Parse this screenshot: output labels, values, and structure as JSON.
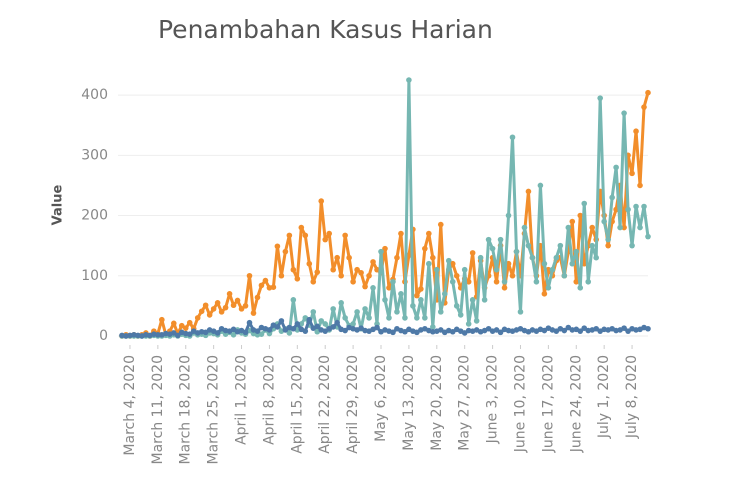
{
  "chart_data": {
    "type": "line",
    "title": "Penambahan Kasus Harian",
    "ylabel": "Value",
    "x": [
      "2020-03-02",
      "2020-03-03",
      "2020-03-04",
      "2020-03-05",
      "2020-03-06",
      "2020-03-07",
      "2020-03-08",
      "2020-03-09",
      "2020-03-10",
      "2020-03-11",
      "2020-03-12",
      "2020-03-13",
      "2020-03-14",
      "2020-03-15",
      "2020-03-16",
      "2020-03-17",
      "2020-03-18",
      "2020-03-19",
      "2020-03-20",
      "2020-03-21",
      "2020-03-22",
      "2020-03-23",
      "2020-03-24",
      "2020-03-25",
      "2020-03-26",
      "2020-03-27",
      "2020-03-28",
      "2020-03-29",
      "2020-03-30",
      "2020-03-31",
      "2020-04-01",
      "2020-04-02",
      "2020-04-03",
      "2020-04-04",
      "2020-04-05",
      "2020-04-06",
      "2020-04-07",
      "2020-04-08",
      "2020-04-09",
      "2020-04-10",
      "2020-04-11",
      "2020-04-12",
      "2020-04-13",
      "2020-04-14",
      "2020-04-15",
      "2020-04-16",
      "2020-04-17",
      "2020-04-18",
      "2020-04-19",
      "2020-04-20",
      "2020-04-21",
      "2020-04-22",
      "2020-04-23",
      "2020-04-24",
      "2020-04-25",
      "2020-04-26",
      "2020-04-27",
      "2020-04-28",
      "2020-04-29",
      "2020-04-30",
      "2020-05-01",
      "2020-05-02",
      "2020-05-03",
      "2020-05-04",
      "2020-05-05",
      "2020-05-06",
      "2020-05-07",
      "2020-05-08",
      "2020-05-09",
      "2020-05-10",
      "2020-05-11",
      "2020-05-12",
      "2020-05-13",
      "2020-05-14",
      "2020-05-15",
      "2020-05-16",
      "2020-05-17",
      "2020-05-18",
      "2020-05-19",
      "2020-05-20",
      "2020-05-21",
      "2020-05-22",
      "2020-05-23",
      "2020-05-24",
      "2020-05-25",
      "2020-05-26",
      "2020-05-27",
      "2020-05-28",
      "2020-05-29",
      "2020-05-30",
      "2020-05-31",
      "2020-06-01",
      "2020-06-02",
      "2020-06-03",
      "2020-06-04",
      "2020-06-05",
      "2020-06-06",
      "2020-06-07",
      "2020-06-08",
      "2020-06-09",
      "2020-06-10",
      "2020-06-11",
      "2020-06-12",
      "2020-06-13",
      "2020-06-14",
      "2020-06-15",
      "2020-06-16",
      "2020-06-17",
      "2020-06-18",
      "2020-06-19",
      "2020-06-20",
      "2020-06-21",
      "2020-06-22",
      "2020-06-23",
      "2020-06-24",
      "2020-06-25",
      "2020-06-26",
      "2020-06-27",
      "2020-06-28",
      "2020-06-29",
      "2020-06-30",
      "2020-07-01",
      "2020-07-02",
      "2020-07-03",
      "2020-07-04",
      "2020-07-05",
      "2020-07-06",
      "2020-07-07",
      "2020-07-08",
      "2020-07-09",
      "2020-07-10",
      "2020-07-11",
      "2020-07-12"
    ],
    "series": [
      {
        "color": "#f28e2b",
        "values": [
          0,
          2,
          0,
          2,
          0,
          2,
          5,
          0,
          8,
          4,
          27,
          2,
          8,
          21,
          4,
          17,
          13,
          22,
          12,
          30,
          41,
          51,
          35,
          45,
          55,
          40,
          47,
          70,
          51,
          59,
          45,
          50,
          100,
          38,
          64,
          84,
          92,
          80,
          81,
          149,
          100,
          140,
          167,
          110,
          95,
          180,
          167,
          120,
          90,
          106,
          224,
          160,
          170,
          110,
          130,
          100,
          167,
          130,
          90,
          110,
          105,
          82,
          100,
          123,
          110,
          105,
          145,
          80,
          94,
          130,
          170,
          90,
          134,
          177,
          67,
          78,
          145,
          170,
          130,
          60,
          185,
          55,
          110,
          120,
          100,
          80,
          95,
          90,
          138,
          65,
          125,
          80,
          100,
          130,
          90,
          150,
          80,
          120,
          100,
          140,
          100,
          170,
          240,
          130,
          100,
          150,
          70,
          110,
          100,
          125,
          130,
          100,
          140,
          190,
          90,
          200,
          120,
          150,
          180,
          160,
          240,
          200,
          150,
          190,
          210,
          250,
          180,
          300,
          270,
          340,
          250,
          380,
          404
        ]
      },
      {
        "color": "#76b7b2",
        "values": [
          0,
          0,
          0,
          0,
          0,
          0,
          0,
          0,
          1,
          0,
          0,
          1,
          0,
          2,
          0,
          3,
          1,
          0,
          5,
          2,
          3,
          1,
          5,
          4,
          2,
          8,
          3,
          6,
          2,
          10,
          5,
          3,
          9,
          4,
          2,
          3,
          10,
          4,
          12,
          20,
          8,
          12,
          5,
          60,
          10,
          20,
          30,
          18,
          40,
          7,
          25,
          20,
          10,
          45,
          15,
          55,
          30,
          17,
          20,
          40,
          12,
          45,
          30,
          80,
          20,
          140,
          60,
          30,
          90,
          40,
          70,
          30,
          425,
          50,
          30,
          60,
          30,
          120,
          15,
          110,
          40,
          70,
          125,
          90,
          50,
          35,
          110,
          20,
          60,
          25,
          130,
          60,
          160,
          145,
          110,
          160,
          90,
          200,
          330,
          140,
          40,
          180,
          150,
          130,
          90,
          250,
          120,
          80,
          110,
          130,
          150,
          100,
          180,
          120,
          140,
          80,
          220,
          90,
          150,
          130,
          395,
          190,
          160,
          230,
          280,
          180,
          370,
          210,
          150,
          215,
          180,
          215,
          165
        ]
      },
      {
        "color": "#4e79a7",
        "values": [
          1,
          0,
          1,
          2,
          1,
          0,
          2,
          1,
          3,
          2,
          2,
          4,
          3,
          5,
          1,
          6,
          4,
          3,
          8,
          5,
          7,
          6,
          10,
          8,
          5,
          12,
          9,
          8,
          11,
          7,
          9,
          6,
          22,
          10,
          8,
          14,
          12,
          10,
          18,
          15,
          25,
          10,
          14,
          12,
          20,
          11,
          8,
          27,
          13,
          16,
          10,
          8,
          12,
          15,
          22,
          11,
          9,
          14,
          12,
          10,
          13,
          9,
          8,
          11,
          14,
          7,
          10,
          8,
          6,
          12,
          9,
          7,
          11,
          8,
          6,
          10,
          12,
          9,
          7,
          8,
          10,
          6,
          9,
          7,
          11,
          8,
          5,
          9,
          8,
          10,
          7,
          9,
          12,
          8,
          10,
          6,
          11,
          9,
          8,
          10,
          12,
          9,
          7,
          10,
          8,
          11,
          9,
          13,
          10,
          8,
          12,
          9,
          14,
          10,
          11,
          8,
          13,
          9,
          10,
          12,
          8,
          11,
          10,
          12,
          9,
          10,
          13,
          8,
          12,
          10,
          11,
          14,
          12
        ]
      }
    ],
    "xlim": [
      "2020-03-01",
      "2020-07-12"
    ],
    "xticks": [
      {
        "value": "2020-03-04",
        "label": "March 4, 2020"
      },
      {
        "value": "2020-03-11",
        "label": "March 11, 2020"
      },
      {
        "value": "2020-03-18",
        "label": "March 18, 2020"
      },
      {
        "value": "2020-03-25",
        "label": "March 25, 2020"
      },
      {
        "value": "2020-04-01",
        "label": "April 1, 2020"
      },
      {
        "value": "2020-04-08",
        "label": "April 8, 2020"
      },
      {
        "value": "2020-04-15",
        "label": "April 15, 2020"
      },
      {
        "value": "2020-04-22",
        "label": "April 22, 2020"
      },
      {
        "value": "2020-04-29",
        "label": "April 29, 2020"
      },
      {
        "value": "2020-05-06",
        "label": "May 6, 2020"
      },
      {
        "value": "2020-05-13",
        "label": "May 13, 2020"
      },
      {
        "value": "2020-05-20",
        "label": "May 20, 2020"
      },
      {
        "value": "2020-05-27",
        "label": "May 27, 2020"
      },
      {
        "value": "2020-06-03",
        "label": "June 3, 2020"
      },
      {
        "value": "2020-06-10",
        "label": "June 10, 2020"
      },
      {
        "value": "2020-06-17",
        "label": "June 17, 2020"
      },
      {
        "value": "2020-06-24",
        "label": "June 24, 2020"
      },
      {
        "value": "2020-07-01",
        "label": "July 1, 2020"
      },
      {
        "value": "2020-07-08",
        "label": "July 8, 2020"
      }
    ],
    "ylim": [
      -15,
      450
    ],
    "yticks": [
      0,
      100,
      200,
      300,
      400
    ],
    "grid": true
  }
}
